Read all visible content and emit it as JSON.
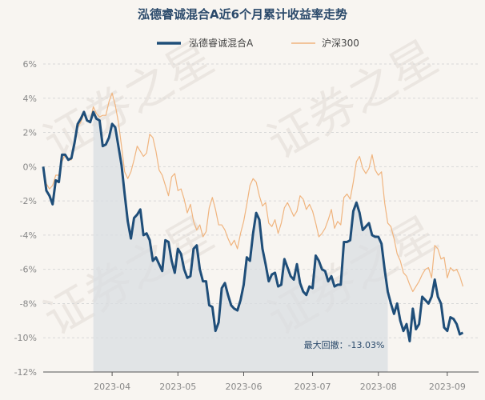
{
  "chart_data": {
    "type": "line",
    "title": "泓德睿诚混合A近6个月累计收益率走势",
    "xlabel": "",
    "ylabel": "",
    "ylim": [
      -12,
      6
    ],
    "y_ticks": [
      6,
      4,
      2,
      0,
      -2,
      -4,
      -6,
      -8,
      -10,
      -12
    ],
    "y_tick_labels": [
      "6%",
      "4%",
      "2%",
      "0%",
      "-2%",
      "-4%",
      "-6%",
      "-8%",
      "-10%",
      "-12%"
    ],
    "x_tick_labels": [
      "2023-04",
      "2023-05",
      "2023-06",
      "2023-07",
      "2023-08",
      "2023-09"
    ],
    "x_tick_positions": [
      22,
      43,
      64,
      86,
      107,
      129
    ],
    "x_range": [
      0,
      139
    ],
    "grid": true,
    "legend_position": "top-center",
    "watermark": "证券之星",
    "drawdown": {
      "label": "最大回撤：-13.03%",
      "start_index": 16,
      "end_index": 110,
      "value": -13.03
    },
    "series": [
      {
        "name": "泓德睿诚混合A",
        "color": "#1f4e79",
        "values": [
          0.0,
          -1.4,
          -1.7,
          -2.2,
          -0.8,
          -0.9,
          0.7,
          0.7,
          0.4,
          0.5,
          1.4,
          2.5,
          2.8,
          3.2,
          2.7,
          2.6,
          3.2,
          2.8,
          2.7,
          1.2,
          1.3,
          1.7,
          2.5,
          2.3,
          1.2,
          0.1,
          -1.6,
          -3.2,
          -4.2,
          -3.0,
          -2.8,
          -2.5,
          -4.0,
          -3.9,
          -4.3,
          -5.5,
          -5.3,
          -5.7,
          -6.1,
          -4.3,
          -4.4,
          -5.5,
          -6.2,
          -4.8,
          -5.1,
          -6.0,
          -6.5,
          -6.4,
          -4.8,
          -4.6,
          -6.0,
          -6.7,
          -6.7,
          -8.1,
          -8.2,
          -9.6,
          -9.1,
          -7.1,
          -6.8,
          -7.5,
          -8.1,
          -8.3,
          -8.4,
          -7.8,
          -6.9,
          -5.3,
          -5.5,
          -3.9,
          -2.7,
          -3.1,
          -4.8,
          -5.7,
          -6.7,
          -6.3,
          -6.2,
          -7.0,
          -6.9,
          -5.4,
          -5.9,
          -6.4,
          -6.6,
          -5.7,
          -6.8,
          -7.3,
          -7.5,
          -7.0,
          -7.1,
          -5.2,
          -5.5,
          -6.0,
          -6.1,
          -6.7,
          -6.4,
          -7.0,
          -6.9,
          -6.9,
          -4.4,
          -4.4,
          -4.3,
          -2.6,
          -2.1,
          -2.7,
          -3.7,
          -3.5,
          -3.3,
          -4.0,
          -4.1,
          -4.1,
          -4.5,
          -6.0,
          -7.3,
          -8.0,
          -8.6,
          -8.0,
          -9.0,
          -9.6,
          -9.2,
          -10.2,
          -8.3,
          -9.5,
          -9.2,
          -7.6,
          -7.8,
          -8.0,
          -7.6,
          -6.6,
          -7.6,
          -8.0,
          -9.4,
          -9.6,
          -8.8,
          -8.9,
          -9.2,
          -9.8,
          -9.7
        ]
      },
      {
        "name": "沪深300",
        "color": "#f0b47e",
        "values": [
          0.0,
          -1.0,
          -1.3,
          -1.1,
          -0.5,
          -0.5,
          0.3,
          0.7,
          0.4,
          0.4,
          1.2,
          2.3,
          2.6,
          3.1,
          2.7,
          2.7,
          3.5,
          3.1,
          2.9,
          3.0,
          3.0,
          3.8,
          4.3,
          3.6,
          2.6,
          1.2,
          -0.3,
          -0.7,
          -0.3,
          0.4,
          1.2,
          0.9,
          0.6,
          0.8,
          1.9,
          1.7,
          0.9,
          -0.2,
          -0.5,
          -1.1,
          -1.7,
          -0.6,
          -0.4,
          -1.4,
          -1.3,
          -1.9,
          -2.7,
          -2.2,
          -3.2,
          -3.7,
          -3.4,
          -4.1,
          -3.8,
          -2.4,
          -1.8,
          -2.5,
          -3.4,
          -3.4,
          -3.7,
          -4.2,
          -4.6,
          -4.3,
          -4.8,
          -3.9,
          -3.2,
          -2.2,
          -1.1,
          -0.7,
          -0.9,
          -1.7,
          -2.3,
          -2.1,
          -3.3,
          -3.5,
          -3.1,
          -3.9,
          -3.3,
          -2.4,
          -2.1,
          -2.5,
          -2.9,
          -2.6,
          -1.7,
          -1.9,
          -2.5,
          -2.2,
          -2.6,
          -3.3,
          -4.1,
          -3.9,
          -3.6,
          -3.1,
          -2.5,
          -3.6,
          -3.2,
          -3.4,
          -1.8,
          -1.6,
          -1.9,
          -0.9,
          0.3,
          0.6,
          -0.1,
          -0.4,
          -0.1,
          0.7,
          -0.2,
          -0.5,
          -0.3,
          -2.1,
          -3.3,
          -3.5,
          -4.2,
          -5.1,
          -5.5,
          -6.2,
          -6.4,
          -6.9,
          -7.3,
          -7.0,
          -6.7,
          -6.3,
          -6.0,
          -5.9,
          -6.5,
          -4.6,
          -4.8,
          -5.4,
          -5.3,
          -6.5,
          -5.9,
          -6.1,
          -6.0,
          -6.4,
          -7.0
        ]
      }
    ]
  }
}
